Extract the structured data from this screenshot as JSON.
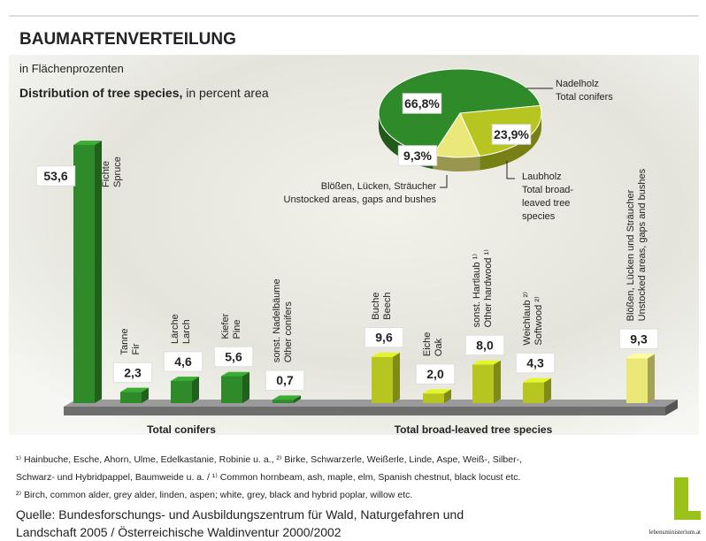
{
  "title": "BAUMARTENVERTEILUNG",
  "subtitle": "in Flächenprozenten",
  "subtitle_en_bold": "Distribution of tree species,",
  "subtitle_en": "in percent area",
  "chart_data": [
    {
      "type": "bar",
      "categories": [
        [
          "Fichte",
          "Spruce"
        ],
        [
          "Tanne",
          "Fir"
        ],
        [
          "Lärche",
          "Larch"
        ],
        [
          "Kiefer",
          "Pine"
        ],
        [
          "sonst. Nadelbäume",
          "Other conifers"
        ],
        [
          "Buche",
          "Beech"
        ],
        [
          "Eiche",
          "Oak"
        ],
        [
          "sonst. Hartlaub ¹⁾",
          "Other hardwood ¹⁾"
        ],
        [
          "Weichlaub ²⁾",
          "Softwood ²⁾"
        ],
        [
          "Blößen, Lücken und Sträucher",
          "Unstocked areas, gaps and bushes"
        ]
      ],
      "values": [
        53.6,
        2.3,
        4.6,
        5.6,
        0.7,
        9.6,
        2.0,
        8.0,
        4.3,
        9.3
      ],
      "value_labels": [
        "53,6",
        "2,3",
        "4,6",
        "5,6",
        "0,7",
        "9,6",
        "2,0",
        "8,0",
        "4,3",
        "9,3"
      ],
      "colors": [
        "#2f8a2a",
        "#2f8a2a",
        "#2f8a2a",
        "#2f8a2a",
        "#2f8a2a",
        "#b7c520",
        "#b7c520",
        "#b7c520",
        "#b7c520",
        "#ebe87a"
      ],
      "ylim": [
        0,
        58
      ],
      "group_labels": [
        "Total conifers",
        "Total broad-leaved tree species"
      ]
    },
    {
      "type": "pie",
      "categories": [
        [
          "Nadelholz",
          "Total conifers"
        ],
        [
          "Laubholz",
          "Total broad-",
          "leaved tree",
          "species"
        ],
        [
          "Blößen, Lücken, Sträucher",
          "Unstocked areas, gaps and bushes"
        ]
      ],
      "values": [
        66.8,
        23.9,
        9.3
      ],
      "value_labels": [
        "66,8%",
        "23,9%",
        "9,3%"
      ],
      "colors": [
        "#2f8a2a",
        "#b7c520",
        "#ebe87a"
      ]
    }
  ],
  "footnotes": [
    "¹⁾ Hainbuche, Esche, Ahorn, Ulme, Edelkastanie, Robinie u. a., ²⁾ Birke, Schwarzerle, Weißerle, Linde, Aspe, Weiß-, Silber-,",
    "Schwarz- und Hybridpappel, Baumweide u. a. / ¹⁾ Common hornbeam, ash, maple, elm, Spanish chestnut, black locust etc.",
    "²⁾ Birch, common alder, grey alder, linden, aspen; white, grey, black and hybrid poplar, willow etc."
  ],
  "source": [
    "Quelle: Bundesforschungs- und Ausbildungszentrum für Wald, Naturgefahren und",
    "Landschaft 2005 / Österreichische Waldinventur 2000/2002"
  ],
  "logo": "lebensministerium.at"
}
